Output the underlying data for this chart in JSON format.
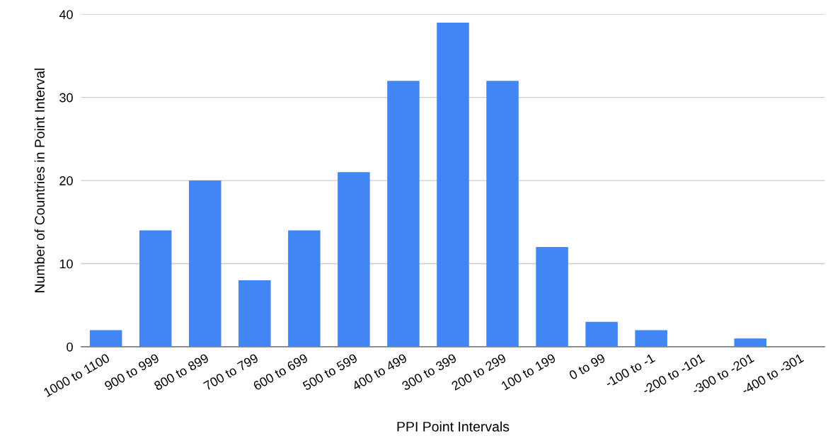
{
  "chart_data": {
    "type": "bar",
    "xlabel": "PPI Point Intervals",
    "ylabel": "Number of Countries in Point Interval",
    "categories": [
      "1000 to 1100",
      "900 to 999",
      "800 to 899",
      "700 to 799",
      "600 to 699",
      "500 to 599",
      "400 to 499",
      "300 to 399",
      "200 to 299",
      "100 to 199",
      "0 to 99",
      "-100 to -1",
      "-200 to -101",
      "-300 to -201",
      "-400 to -301"
    ],
    "values": [
      2,
      14,
      20,
      8,
      14,
      21,
      32,
      39,
      32,
      12,
      3,
      2,
      0,
      1,
      0
    ],
    "color": "#4285f4",
    "ylim": [
      0,
      40
    ],
    "yticks": [
      0,
      10,
      20,
      30,
      40
    ],
    "grid": "y"
  }
}
